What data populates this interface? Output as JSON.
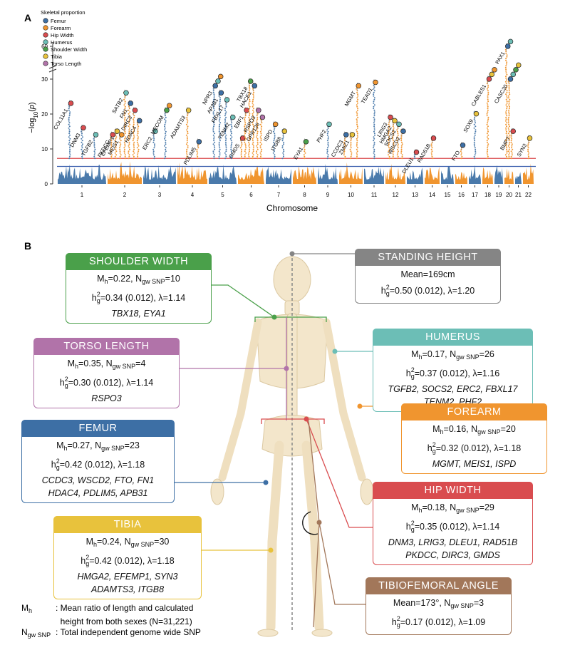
{
  "panel_a": {
    "label": "A",
    "chart_data": {
      "type": "manhattan",
      "xlabel": "Chromosome",
      "ylabel": [
        "−log",
        {
          "sub": "10"
        },
        "(",
        {
          "i": "p"
        },
        ")"
      ],
      "ylim": [
        0,
        65
      ],
      "yticks": [
        0,
        10,
        20,
        30,
        60
      ],
      "axis_break": true,
      "chromosomes": [
        "1",
        "2",
        "3",
        "4",
        "5",
        "6",
        "7",
        "8",
        "9",
        "10",
        "11",
        "12",
        "13",
        "14",
        "15",
        "16",
        "17",
        "18",
        "19",
        "20",
        "21",
        "22"
      ],
      "colors": [
        "#4a7aab",
        "#f0952f"
      ],
      "thresholds": [
        {
          "value": 7.3,
          "color": "#d9474a"
        },
        {
          "value": 5,
          "color": "#3b5fae"
        }
      ],
      "legend": {
        "title": "Skeletal proportion",
        "items": [
          {
            "name": "Femur",
            "color": "#3d6fa5"
          },
          {
            "name": "Forearm",
            "color": "#f0952f"
          },
          {
            "name": "Hip Width",
            "color": "#d94c4f"
          },
          {
            "name": "Humerus",
            "color": "#6cbeb6"
          },
          {
            "name": "Shoulder Width",
            "color": "#4aa04a"
          },
          {
            "name": "Tibia",
            "color": "#e8c23c"
          },
          {
            "name": "Torso Length",
            "color": "#b173a9"
          }
        ]
      },
      "genes": [
        {
          "label": "COL11A1",
          "chr": 0,
          "value": 24,
          "traits": [
            2
          ]
        },
        {
          "label": "DNM3",
          "chr": 0,
          "value": 17,
          "traits": [
            2
          ]
        },
        {
          "label": "TGFB2",
          "chr": 0,
          "value": 15,
          "traits": [
            3
          ]
        },
        {
          "label": "PKDCC",
          "chr": 1,
          "value": 15,
          "traits": [
            2
          ]
        },
        {
          "label": "EFEMP1",
          "chr": 1,
          "value": 16,
          "traits": [
            5
          ]
        },
        {
          "label": "MEIS1",
          "chr": 1,
          "value": 15,
          "traits": [
            1
          ]
        },
        {
          "label": "SATB2",
          "chr": 1,
          "value": 27,
          "traits": [
            3
          ]
        },
        {
          "label": "FN1",
          "chr": 1,
          "value": 24,
          "traits": [
            0
          ]
        },
        {
          "label": "DIRC3",
          "chr": 1,
          "value": 22,
          "traits": [
            2
          ]
        },
        {
          "label": "HDAC4",
          "chr": 1,
          "value": 19,
          "traits": [
            0
          ]
        },
        {
          "label": "ERC2",
          "chr": 2,
          "value": 16,
          "traits": [
            3
          ]
        },
        {
          "label": "MECOM",
          "chr": 2,
          "value": 22,
          "traits": [
            4,
            1
          ]
        },
        {
          "label": "ADAMTS3",
          "chr": 3,
          "value": 22,
          "traits": [
            5
          ]
        },
        {
          "label": "PDLIM5",
          "chr": 3,
          "value": 13,
          "traits": [
            0
          ]
        },
        {
          "label": "NPR3",
          "chr": 4,
          "value": 29,
          "traits": [
            0,
            3,
            1
          ]
        },
        {
          "label": "AP3B1",
          "chr": 4,
          "value": 27,
          "traits": [
            0
          ]
        },
        {
          "label": "FBXL17",
          "chr": 4,
          "value": 25,
          "traits": [
            3
          ]
        },
        {
          "label": "TENM2",
          "chr": 4,
          "value": 20,
          "traits": [
            3
          ]
        },
        {
          "label": "GMDS",
          "chr": 5,
          "value": 14,
          "traits": [
            2
          ]
        },
        {
          "label": "EBF1",
          "chr": 5,
          "value": 22,
          "traits": [
            2
          ]
        },
        {
          "label": "TBX18",
          "chr": 5,
          "value": 31,
          "traits": [
            4
          ]
        },
        {
          "label": "HACE1",
          "chr": 5,
          "value": 29,
          "traits": [
            0
          ]
        },
        {
          "label": "RSPO3",
          "chr": 5,
          "value": 22,
          "traits": [
            6
          ]
        },
        {
          "label": "GPR126",
          "chr": 5,
          "value": 20,
          "traits": [
            6
          ]
        },
        {
          "label": "ISPD",
          "chr": 6,
          "value": 18,
          "traits": [
            1
          ]
        },
        {
          "label": "ITGB8",
          "chr": 6,
          "value": 16,
          "traits": [
            5
          ]
        },
        {
          "label": "EYA1",
          "chr": 7,
          "value": 13,
          "traits": [
            4
          ]
        },
        {
          "label": "PHF2",
          "chr": 8,
          "value": 18,
          "traits": [
            3
          ]
        },
        {
          "label": "CCDC3",
          "chr": 9,
          "value": 15,
          "traits": [
            0
          ]
        },
        {
          "label": "ZMIZ1",
          "chr": 9,
          "value": 15,
          "traits": [
            5
          ]
        },
        {
          "label": "MGMT",
          "chr": 9,
          "value": 29,
          "traits": [
            1
          ]
        },
        {
          "label": "TEAD1",
          "chr": 10,
          "value": 30,
          "traits": [
            1
          ]
        },
        {
          "label": "LRIG3",
          "chr": 11,
          "value": 20,
          "traits": [
            2
          ]
        },
        {
          "label": "HMGA2",
          "chr": 11,
          "value": 19,
          "traits": [
            5
          ]
        },
        {
          "label": "SOCS2",
          "chr": 11,
          "value": 18,
          "traits": [
            3
          ]
        },
        {
          "label": "WSCD2",
          "chr": 11,
          "value": 16,
          "traits": [
            0
          ]
        },
        {
          "label": "DLEU1",
          "chr": 12,
          "value": 10,
          "traits": [
            2
          ]
        },
        {
          "label": "RAD51B",
          "chr": 13,
          "value": 14,
          "traits": [
            2
          ]
        },
        {
          "label": "FTO",
          "chr": 15,
          "value": 12,
          "traits": [
            0
          ]
        },
        {
          "label": "SOX9",
          "chr": 16,
          "value": 21,
          "traits": [
            5
          ]
        },
        {
          "label": "CABLES1",
          "chr": 17,
          "value": 33,
          "traits": [
            2,
            5,
            1
          ]
        },
        {
          "label": "PAX1",
          "chr": 19,
          "value": 63,
          "traits": [
            0,
            3
          ]
        },
        {
          "label": "CASC20",
          "chr": 19,
          "value": 33,
          "traits": [
            0,
            3,
            4,
            5
          ]
        },
        {
          "label": "BMP7",
          "chr": 19,
          "value": 16,
          "traits": [
            2
          ]
        },
        {
          "label": "SYN3",
          "chr": 21,
          "value": 14,
          "traits": [
            5
          ]
        }
      ]
    }
  },
  "panel_b": {
    "label": "B",
    "boxes": [
      {
        "title": "SHOULDER WIDTH",
        "color": "#4aa04a",
        "lines": [
          [
            "M",
            {
              "sub": "h"
            },
            "=0.22, N",
            {
              "sub": "gw SNP"
            },
            "=10"
          ],
          [
            "h",
            {
              "sub": "g"
            },
            {
              "sup": "2"
            },
            "=0.34 (0.012), λ=1.14"
          ],
          [
            {
              "i": "TBX18, EYA1"
            }
          ]
        ]
      },
      {
        "title": "STANDING HEIGHT",
        "color": "#858585",
        "lines": [
          [
            "Mean=169cm"
          ],
          [
            "h",
            {
              "sub": "g"
            },
            {
              "sup": "2"
            },
            "=0.50 (0.012), λ=1.20"
          ]
        ]
      },
      {
        "title": "HUMERUS",
        "color": "#6cbeb6",
        "lines": [
          [
            "M",
            {
              "sub": "h"
            },
            "=0.17, N",
            {
              "sub": "gw SNP"
            },
            "=26"
          ],
          [
            "h",
            {
              "sub": "g"
            },
            {
              "sup": "2"
            },
            "=0.37 (0.012), λ=1.16"
          ],
          [
            {
              "i": "TGFB2, SOCS2, ERC2, FBXL17"
            }
          ],
          [
            {
              "i": "TENM2, PHF2"
            }
          ]
        ]
      },
      {
        "title": "TORSO LENGTH",
        "color": "#b173a9",
        "lines": [
          [
            "M",
            {
              "sub": "h"
            },
            "=0.35, N",
            {
              "sub": "gw SNP"
            },
            "=4"
          ],
          [
            "h",
            {
              "sub": "g"
            },
            {
              "sup": "2"
            },
            "=0.30 (0.012), λ=1.14"
          ],
          [
            {
              "i": "RSPO3"
            }
          ]
        ]
      },
      {
        "title": "FOREARM",
        "color": "#f0952f",
        "lines": [
          [
            "M",
            {
              "sub": "h"
            },
            "=0.16, N",
            {
              "sub": "gw SNP"
            },
            "=20"
          ],
          [
            "h",
            {
              "sub": "g"
            },
            {
              "sup": "2"
            },
            "=0.32 (0.012), λ=1.18"
          ],
          [
            {
              "i": "MGMT, MEIS1, ISPD"
            }
          ]
        ]
      },
      {
        "title": "FEMUR",
        "color": "#3d6fa5",
        "lines": [
          [
            "M",
            {
              "sub": "h"
            },
            "=0.27, N",
            {
              "sub": "gw SNP"
            },
            "=23"
          ],
          [
            "h",
            {
              "sub": "g"
            },
            {
              "sup": "2"
            },
            "=0.42 (0.012), λ=1.18"
          ],
          [
            {
              "i": "CCDC3, WSCD2, FTO, FN1"
            }
          ],
          [
            {
              "i": "HDAC4, PDLIM5, APB31"
            }
          ]
        ]
      },
      {
        "title": "HIP WIDTH",
        "color": "#d94c4f",
        "lines": [
          [
            "M",
            {
              "sub": "h"
            },
            "=0.18, N",
            {
              "sub": "gw SNP"
            },
            "=29"
          ],
          [
            "h",
            {
              "sub": "g"
            },
            {
              "sup": "2"
            },
            "=0.35 (0.012), λ=1.14"
          ],
          [
            {
              "i": "DNM3, LRIG3, DLEU1, RAD51B"
            }
          ],
          [
            {
              "i": "PKDCC, DIRC3, GMDS"
            }
          ]
        ]
      },
      {
        "title": "TIBIA",
        "color": "#e8c23c",
        "lines": [
          [
            "M",
            {
              "sub": "h"
            },
            "=0.24, N",
            {
              "sub": "gw SNP"
            },
            "=30"
          ],
          [
            "h",
            {
              "sub": "g"
            },
            {
              "sup": "2"
            },
            "=0.42 (0.012), λ=1.18"
          ],
          [
            {
              "i": "HMGA2, EFEMP1, SYN3"
            }
          ],
          [
            {
              "i": "ADAMTS3, ITGB8"
            }
          ]
        ]
      },
      {
        "title": "TIBIOFEMORAL ANGLE",
        "color": "#a2775a",
        "lines": [
          [
            "Mean=173°, N",
            {
              "sub": "gw SNP"
            },
            "=3"
          ],
          [
            "h",
            {
              "sub": "g"
            },
            {
              "sup": "2"
            },
            "=0.17 (0.012), λ=1.09"
          ]
        ]
      }
    ],
    "footnote": [
      {
        "term": [
          "M",
          {
            "sub": "h"
          }
        ],
        "definition": [
          ": Mean ratio of length and calculated",
          "  height from both sexes (N=31,221)"
        ]
      },
      {
        "term": [
          "N",
          {
            "sub": "gw SNP"
          }
        ],
        "definition": [
          ": Total independent genome wide SNP"
        ]
      }
    ]
  }
}
